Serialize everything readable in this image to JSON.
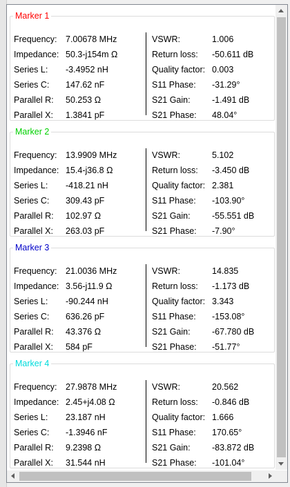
{
  "markers": [
    {
      "title": "Marker 1",
      "color": "#ff0000",
      "left": [
        {
          "label": "Frequency:",
          "value": "7.00678 MHz"
        },
        {
          "label": "Impedance:",
          "value": "50.3-j154m Ω"
        },
        {
          "label": "Series L:",
          "value": "-3.4952 nH"
        },
        {
          "label": "Series C:",
          "value": "147.62 nF"
        },
        {
          "label": "Parallel R:",
          "value": "50.253 Ω"
        },
        {
          "label": "Parallel X:",
          "value": "1.3841 pF"
        }
      ],
      "right": [
        {
          "label": "VSWR:",
          "value": "1.006"
        },
        {
          "label": "Return loss:",
          "value": "-50.611 dB"
        },
        {
          "label": "Quality factor:",
          "value": "0.003"
        },
        {
          "label": "S11 Phase:",
          "value": "-31.29°"
        },
        {
          "label": "S21 Gain:",
          "value": "-1.491 dB"
        },
        {
          "label": "S21 Phase:",
          "value": "48.04°"
        }
      ]
    },
    {
      "title": "Marker 2",
      "color": "#00d000",
      "left": [
        {
          "label": "Frequency:",
          "value": "13.9909 MHz"
        },
        {
          "label": "Impedance:",
          "value": "15.4-j36.8 Ω"
        },
        {
          "label": "Series L:",
          "value": "-418.21 nH"
        },
        {
          "label": "Series C:",
          "value": "309.43 pF"
        },
        {
          "label": "Parallel R:",
          "value": "102.97 Ω"
        },
        {
          "label": "Parallel X:",
          "value": "263.03 pF"
        }
      ],
      "right": [
        {
          "label": "VSWR:",
          "value": "5.102"
        },
        {
          "label": "Return loss:",
          "value": "-3.450 dB"
        },
        {
          "label": "Quality factor:",
          "value": "2.381"
        },
        {
          "label": "S11 Phase:",
          "value": "-103.90°"
        },
        {
          "label": "S21 Gain:",
          "value": "-55.551 dB"
        },
        {
          "label": "S21 Phase:",
          "value": "-7.90°"
        }
      ]
    },
    {
      "title": "Marker 3",
      "color": "#0000c8",
      "left": [
        {
          "label": "Frequency:",
          "value": "21.0036 MHz"
        },
        {
          "label": "Impedance:",
          "value": "3.56-j11.9 Ω"
        },
        {
          "label": "Series L:",
          "value": "-90.244 nH"
        },
        {
          "label": "Series C:",
          "value": "636.26 pF"
        },
        {
          "label": "Parallel R:",
          "value": "43.376 Ω"
        },
        {
          "label": "Parallel X:",
          "value": "584 pF"
        }
      ],
      "right": [
        {
          "label": "VSWR:",
          "value": "14.835"
        },
        {
          "label": "Return loss:",
          "value": "-1.173 dB"
        },
        {
          "label": "Quality factor:",
          "value": "3.343"
        },
        {
          "label": "S11 Phase:",
          "value": "-153.08°"
        },
        {
          "label": "S21 Gain:",
          "value": "-67.780 dB"
        },
        {
          "label": "S21 Phase:",
          "value": "-51.77°"
        }
      ]
    },
    {
      "title": "Marker 4",
      "color": "#00dcdc",
      "left": [
        {
          "label": "Frequency:",
          "value": "27.9878 MHz"
        },
        {
          "label": "Impedance:",
          "value": "2.45+j4.08 Ω"
        },
        {
          "label": "Series L:",
          "value": "23.187 nH"
        },
        {
          "label": "Series C:",
          "value": "-1.3946 nF"
        },
        {
          "label": "Parallel R:",
          "value": "9.2398 Ω"
        },
        {
          "label": "Parallel X:",
          "value": "31.544 nH"
        }
      ],
      "right": [
        {
          "label": "VSWR:",
          "value": "20.562"
        },
        {
          "label": "Return loss:",
          "value": "-0.846 dB"
        },
        {
          "label": "Quality factor:",
          "value": "1.666"
        },
        {
          "label": "S11 Phase:",
          "value": "170.65°"
        },
        {
          "label": "S21 Gain:",
          "value": "-83.872 dB"
        },
        {
          "label": "S21 Phase:",
          "value": "-101.04°"
        }
      ]
    }
  ],
  "scrollbars": {
    "vertical_up_icon": "arrow-up-icon",
    "vertical_down_icon": "arrow-down-icon",
    "horizontal_left_icon": "arrow-left-icon",
    "horizontal_right_icon": "arrow-right-icon"
  }
}
